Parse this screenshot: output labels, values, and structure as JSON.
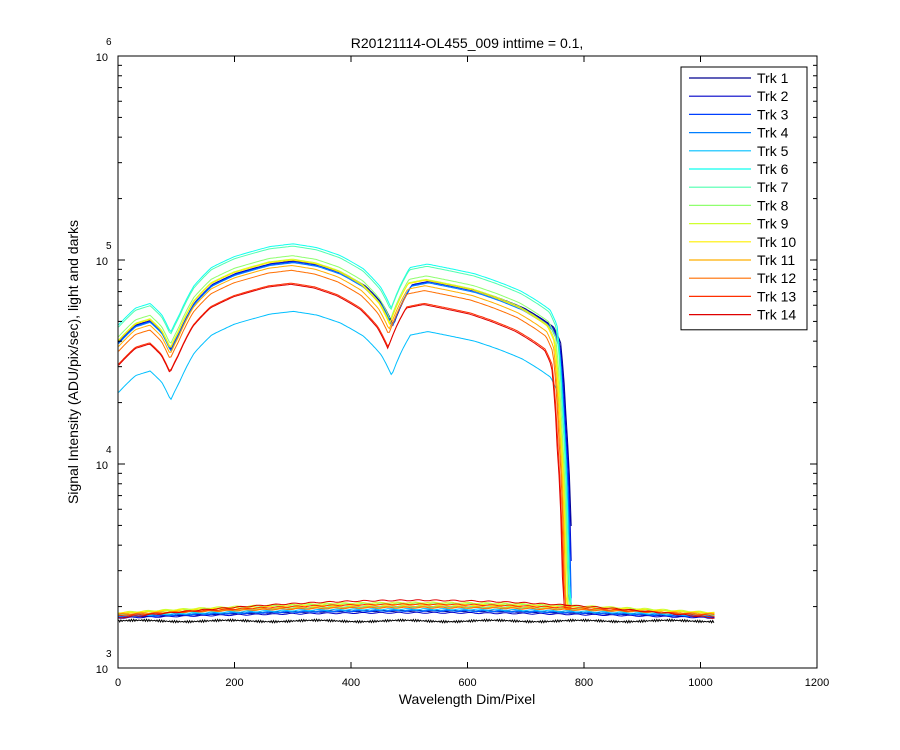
{
  "chart_data": {
    "type": "line",
    "title": "R20121114-OL455_009 inttime = 0.1,",
    "xlabel": "Wavelength Dim/Pixel",
    "ylabel": "Signal Intensity (ADU/pix/sec), light and darks",
    "xlim": [
      0,
      1200
    ],
    "ylim": [
      1000,
      1000000
    ],
    "yscale": "log",
    "x_ticks": [
      {
        "value": 0,
        "label": "0"
      },
      {
        "value": 200,
        "label": "200"
      },
      {
        "value": 400,
        "label": "400"
      },
      {
        "value": 600,
        "label": "600"
      },
      {
        "value": 800,
        "label": "800"
      },
      {
        "value": 1000,
        "label": "1000"
      },
      {
        "value": 1200,
        "label": "1200"
      }
    ],
    "y_ticks": [
      {
        "value": 1000,
        "base": "10",
        "exp": "3"
      },
      {
        "value": 10000,
        "base": "10",
        "exp": "4"
      },
      {
        "value": 100000,
        "base": "10",
        "exp": "5"
      },
      {
        "value": 1000000,
        "base": "10",
        "exp": "6"
      }
    ],
    "grid": false,
    "legend_position": "top-right",
    "light_shape": {
      "x": [
        0,
        30,
        55,
        75,
        90,
        105,
        130,
        160,
        200,
        230,
        260,
        300,
        340,
        380,
        420,
        450,
        468,
        485,
        500,
        530,
        570,
        610,
        650,
        690,
        720,
        740,
        752,
        762,
        772,
        782,
        800
      ],
      "rel": [
        0.78,
        0.95,
        1.0,
        0.88,
        0.72,
        0.88,
        1.22,
        1.5,
        1.7,
        1.8,
        1.9,
        1.96,
        1.88,
        1.72,
        1.48,
        1.2,
        0.95,
        1.25,
        1.5,
        1.56,
        1.48,
        1.4,
        1.28,
        1.15,
        1.02,
        0.93,
        0.78,
        0.3,
        0.045,
        0.018,
        0.01
      ]
    },
    "series": [
      {
        "name": "Trk 1",
        "color": "#00008f",
        "light_peak": 99000,
        "dark_base": 1780,
        "bump": 1.07
      },
      {
        "name": "Trk 2",
        "color": "#0000c8",
        "light_peak": 98500,
        "dark_base": 1760,
        "bump": 1.06
      },
      {
        "name": "Trk 3",
        "color": "#003fff",
        "light_peak": 98000,
        "dark_base": 1780,
        "bump": 1.07
      },
      {
        "name": "Trk 4",
        "color": "#007fff",
        "light_peak": 97000,
        "dark_base": 1790,
        "bump": 1.07
      },
      {
        "name": "Trk 5",
        "color": "#00bfff",
        "light_peak": 56000,
        "dark_base": 1800,
        "bump": 1.08
      },
      {
        "name": "Trk 6",
        "color": "#0fffef",
        "light_peak": 120000,
        "dark_base": 1810,
        "bump": 1.1
      },
      {
        "name": "Trk 7",
        "color": "#4fffaf",
        "light_peak": 117000,
        "dark_base": 1820,
        "bump": 1.1
      },
      {
        "name": "Trk 8",
        "color": "#8fff6f",
        "light_peak": 105000,
        "dark_base": 1850,
        "bump": 1.12
      },
      {
        "name": "Trk 9",
        "color": "#cfff2f",
        "light_peak": 101000,
        "dark_base": 1870,
        "bump": 1.12
      },
      {
        "name": "Trk 10",
        "color": "#ffef00",
        "light_peak": 100000,
        "dark_base": 1860,
        "bump": 1.1
      },
      {
        "name": "Trk 11",
        "color": "#ffaf00",
        "light_peak": 94000,
        "dark_base": 1840,
        "bump": 1.09
      },
      {
        "name": "Trk 12",
        "color": "#ff6f00",
        "light_peak": 89000,
        "dark_base": 1830,
        "bump": 1.08
      },
      {
        "name": "Trk 13",
        "color": "#ff2f00",
        "light_peak": 77000,
        "dark_base": 1800,
        "bump": 1.14
      },
      {
        "name": "Trk 14",
        "color": "#df0000",
        "light_peak": 76000,
        "dark_base": 1760,
        "bump": 1.22
      }
    ],
    "extra_dark": {
      "color": "#000000",
      "base": 1700
    }
  }
}
